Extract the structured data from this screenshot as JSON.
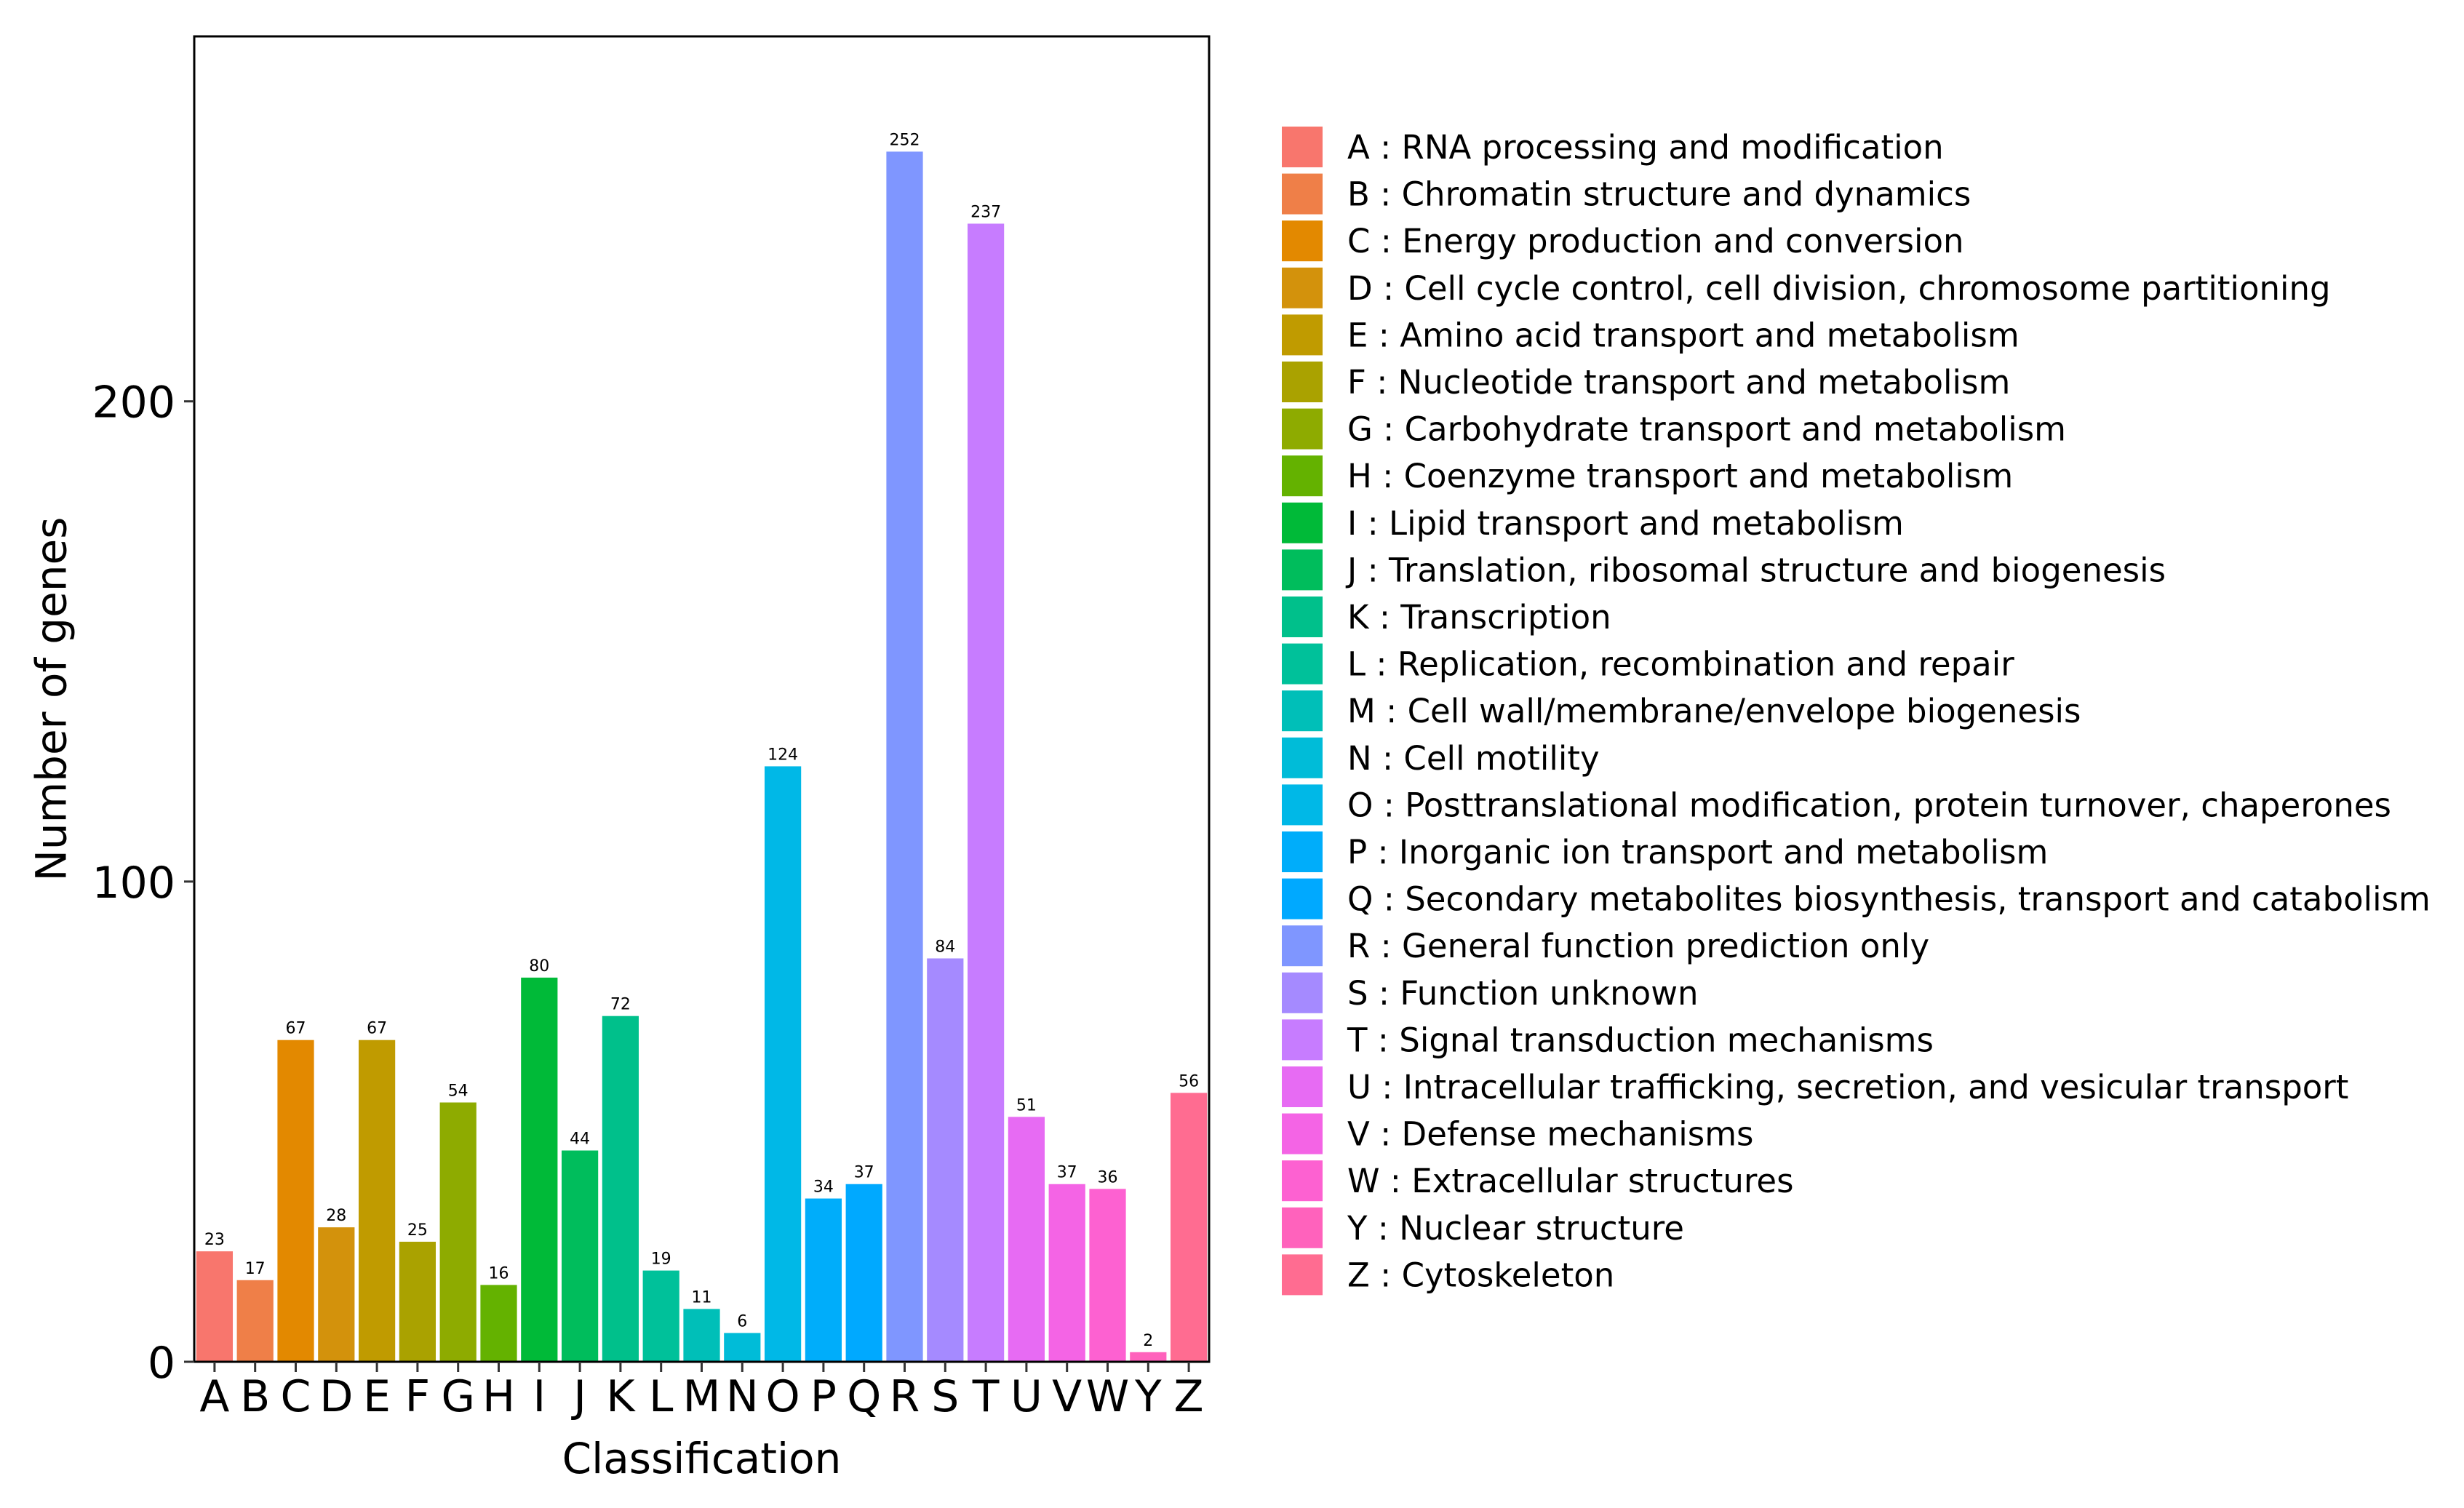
{
  "chart_data": {
    "type": "bar",
    "xlabel": "Classification",
    "ylabel": "Number of genes",
    "ylim": [
      0,
      276
    ],
    "yticks": [
      0,
      100,
      200
    ],
    "grid": false,
    "legend_position": "right",
    "categories": [
      "A",
      "B",
      "C",
      "D",
      "E",
      "F",
      "G",
      "H",
      "I",
      "J",
      "K",
      "L",
      "M",
      "N",
      "O",
      "P",
      "Q",
      "R",
      "S",
      "T",
      "U",
      "V",
      "W",
      "Y",
      "Z"
    ],
    "values": [
      23,
      17,
      67,
      28,
      67,
      25,
      54,
      16,
      80,
      44,
      72,
      19,
      11,
      6,
      124,
      34,
      37,
      252,
      84,
      237,
      51,
      37,
      36,
      2,
      56
    ],
    "value_labels": [
      "23",
      "17",
      "67",
      "28",
      "67",
      "25",
      "54",
      "16",
      "80",
      "44",
      "72",
      "19",
      "11",
      "6",
      "124",
      "34",
      "37",
      "252",
      "84",
      "237",
      "51",
      "37",
      "36",
      "2",
      "56"
    ],
    "colors": [
      "#F8766D",
      "#EF7F48",
      "#E38900",
      "#D3920C",
      "#C09B00",
      "#AAA200",
      "#8EAB00",
      "#64B200",
      "#00BA38",
      "#00BD5C",
      "#00C08B",
      "#00C19A",
      "#00BFB8",
      "#00BCD8",
      "#00B8E7",
      "#00ADFA",
      "#00A9FF",
      "#7F96FF",
      "#A58AFF",
      "#C77CFF",
      "#E76BF3",
      "#F464E5",
      "#FD61D1",
      "#FF62BC",
      "#FF6C91"
    ],
    "legend": [
      "A : RNA processing and modification",
      "B : Chromatin structure and dynamics",
      "C : Energy production and conversion",
      "D : Cell cycle control, cell division, chromosome partitioning",
      "E : Amino acid transport and metabolism",
      "F : Nucleotide transport and metabolism",
      "G : Carbohydrate transport and metabolism",
      "H : Coenzyme transport and metabolism",
      "I : Lipid transport and metabolism",
      "J : Translation, ribosomal structure and biogenesis",
      "K : Transcription",
      "L : Replication, recombination and repair",
      "M : Cell wall/membrane/envelope biogenesis",
      "N : Cell motility",
      "O : Posttranslational modification, protein turnover, chaperones",
      "P : Inorganic ion transport and metabolism",
      "Q : Secondary metabolites biosynthesis, transport and catabolism",
      "R : General function prediction only",
      "S : Function unknown",
      "T : Signal transduction mechanisms",
      "U : Intracellular trafficking, secretion, and vesicular transport",
      "V : Defense mechanisms",
      "W : Extracellular structures",
      "Y : Nuclear structure",
      "Z : Cytoskeleton"
    ]
  }
}
